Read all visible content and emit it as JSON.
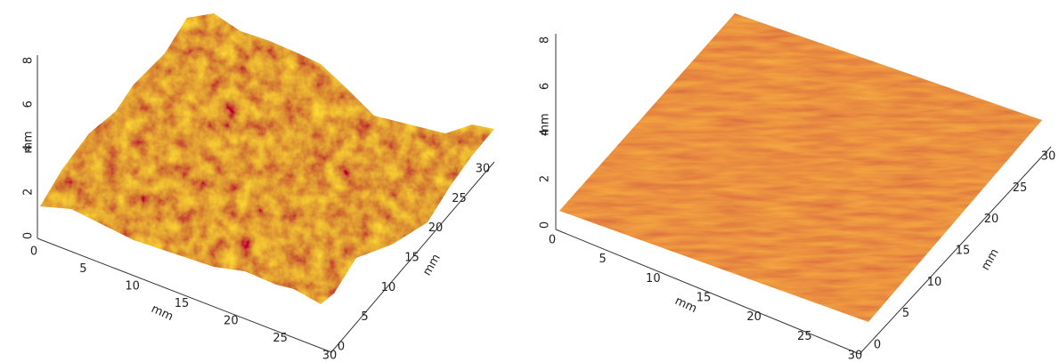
{
  "panels": [
    {
      "z_ticks": [
        0,
        2,
        4,
        6,
        8
      ],
      "z_label": "mm",
      "x_ticks": [
        0,
        5,
        10,
        15,
        20,
        25,
        30
      ],
      "x_label": "mm",
      "y_ticks": [
        0,
        5,
        10,
        15,
        20,
        25,
        30
      ],
      "y_label": "mm"
    },
    {
      "z_ticks": [
        0,
        2,
        4,
        6,
        8
      ],
      "z_label": "mm",
      "x_ticks": [
        0,
        5,
        10,
        15,
        20,
        25,
        30
      ],
      "x_label": "mm",
      "y_ticks": [
        0,
        5,
        10,
        15,
        20,
        25,
        30
      ],
      "y_label": "mm"
    }
  ]
}
